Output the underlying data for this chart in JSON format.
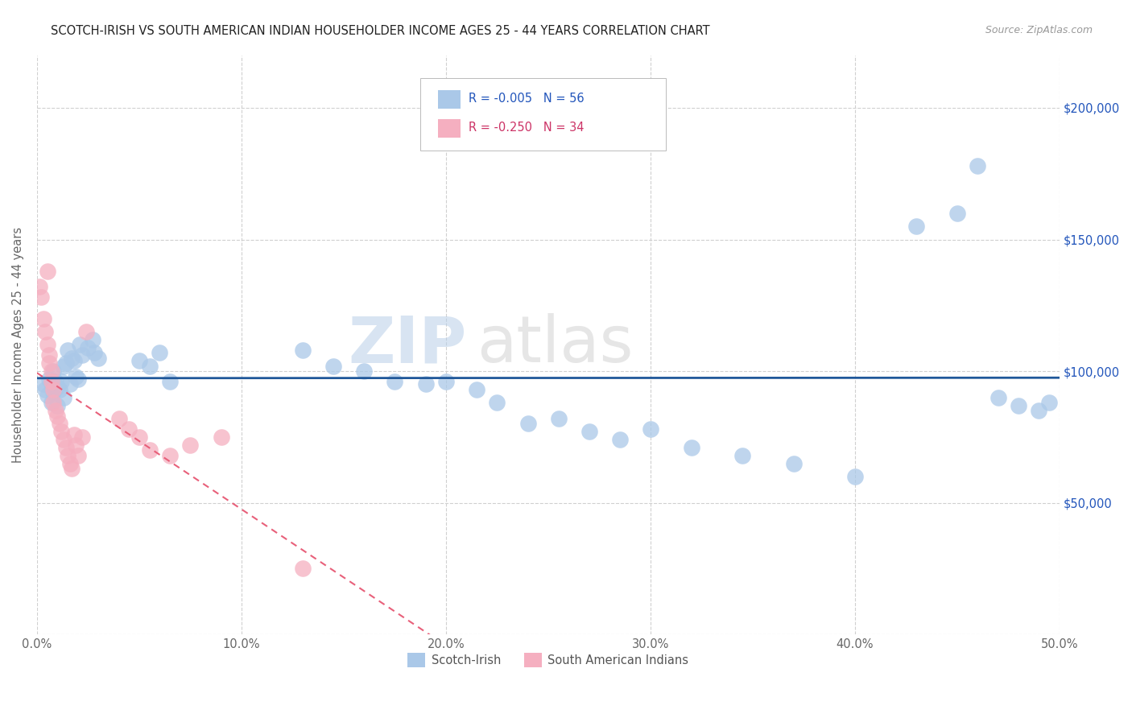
{
  "title": "SCOTCH-IRISH VS SOUTH AMERICAN INDIAN HOUSEHOLDER INCOME AGES 25 - 44 YEARS CORRELATION CHART",
  "source": "Source: ZipAtlas.com",
  "ylabel": "Householder Income Ages 25 - 44 years",
  "xmin": 0.0,
  "xmax": 0.5,
  "ymin": 0,
  "ymax": 220000,
  "xticks": [
    0.0,
    0.1,
    0.2,
    0.3,
    0.4,
    0.5
  ],
  "xticklabels": [
    "0.0%",
    "10.0%",
    "20.0%",
    "30.0%",
    "40.0%",
    "50.0%"
  ],
  "yticks": [
    0,
    50000,
    100000,
    150000,
    200000
  ],
  "yticklabels": [
    "",
    "$50,000",
    "$100,000",
    "$150,000",
    "$200,000"
  ],
  "legend1_label": "R = -0.005   N = 56",
  "legend2_label": "R = -0.250   N = 34",
  "legend_bottom_label1": "Scotch-Irish",
  "legend_bottom_label2": "South American Indians",
  "watermark_zip": "ZIP",
  "watermark_atlas": "atlas",
  "blue_color": "#aac8e8",
  "pink_color": "#f5afc0",
  "line_blue": "#1f5799",
  "line_pink": "#e8607a",
  "background_color": "#ffffff",
  "scotch_irish_x": [
    0.003,
    0.004,
    0.005,
    0.006,
    0.007,
    0.007,
    0.008,
    0.008,
    0.009,
    0.01,
    0.01,
    0.011,
    0.012,
    0.013,
    0.013,
    0.014,
    0.015,
    0.016,
    0.017,
    0.018,
    0.019,
    0.02,
    0.021,
    0.022,
    0.025,
    0.027,
    0.028,
    0.03,
    0.05,
    0.055,
    0.06,
    0.065,
    0.13,
    0.145,
    0.16,
    0.175,
    0.19,
    0.2,
    0.215,
    0.225,
    0.24,
    0.255,
    0.27,
    0.285,
    0.3,
    0.32,
    0.345,
    0.37,
    0.4,
    0.43,
    0.45,
    0.46,
    0.47,
    0.48,
    0.49,
    0.495
  ],
  "scotch_irish_y": [
    95000,
    93000,
    91000,
    97000,
    95000,
    88000,
    100000,
    92000,
    96000,
    94000,
    87000,
    93000,
    96000,
    90000,
    102000,
    103000,
    108000,
    95000,
    105000,
    104000,
    98000,
    97000,
    110000,
    106000,
    109000,
    112000,
    107000,
    105000,
    104000,
    102000,
    107000,
    96000,
    108000,
    102000,
    100000,
    96000,
    95000,
    96000,
    93000,
    88000,
    80000,
    82000,
    77000,
    74000,
    78000,
    71000,
    68000,
    65000,
    60000,
    155000,
    160000,
    178000,
    90000,
    87000,
    85000,
    88000
  ],
  "south_am_x": [
    0.001,
    0.002,
    0.003,
    0.004,
    0.005,
    0.005,
    0.006,
    0.006,
    0.007,
    0.007,
    0.008,
    0.008,
    0.009,
    0.01,
    0.011,
    0.012,
    0.013,
    0.014,
    0.015,
    0.016,
    0.017,
    0.018,
    0.019,
    0.02,
    0.022,
    0.024,
    0.04,
    0.045,
    0.05,
    0.055,
    0.065,
    0.075,
    0.09,
    0.13
  ],
  "south_am_y": [
    132000,
    128000,
    120000,
    115000,
    138000,
    110000,
    106000,
    103000,
    100000,
    96000,
    93000,
    88000,
    85000,
    83000,
    80000,
    77000,
    74000,
    71000,
    68000,
    65000,
    63000,
    76000,
    72000,
    68000,
    75000,
    115000,
    82000,
    78000,
    75000,
    70000,
    68000,
    72000,
    75000,
    25000
  ]
}
